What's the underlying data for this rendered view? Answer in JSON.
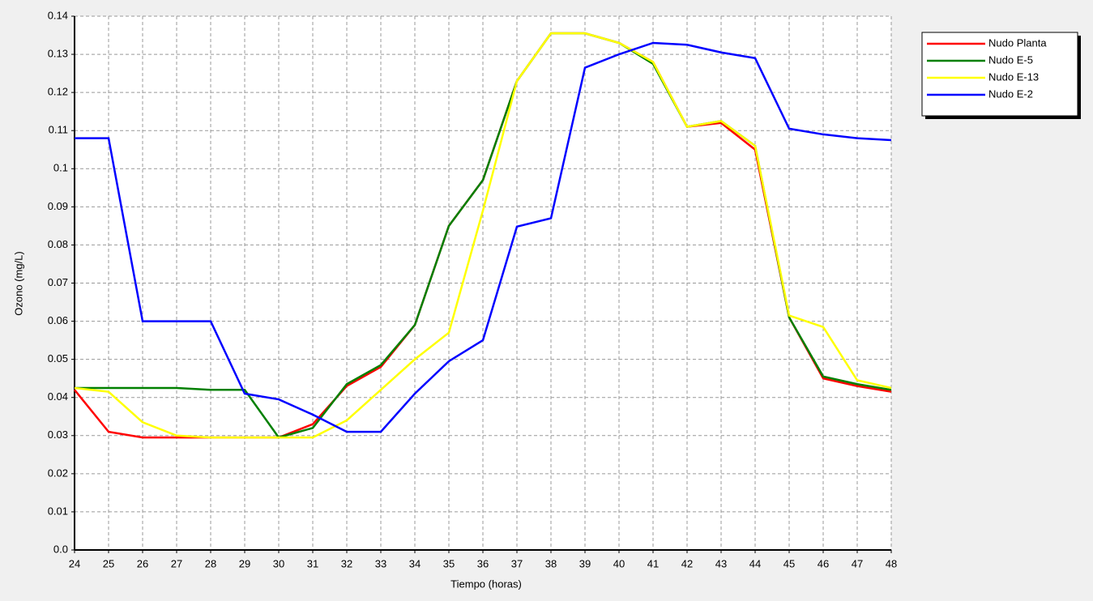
{
  "chart_data": {
    "type": "line",
    "x_label": "Tiempo (horas)",
    "y_label": "Ozono (mg/L)",
    "x": [
      24,
      25,
      26,
      27,
      28,
      29,
      30,
      31,
      32,
      33,
      34,
      35,
      36,
      37,
      38,
      39,
      40,
      41,
      42,
      43,
      44,
      45,
      46,
      47,
      48
    ],
    "xlim": [
      24,
      48
    ],
    "xticks": [
      24,
      25,
      26,
      27,
      28,
      29,
      30,
      31,
      32,
      33,
      34,
      35,
      36,
      37,
      38,
      39,
      40,
      41,
      42,
      43,
      44,
      45,
      46,
      47,
      48
    ],
    "ylim": [
      0,
      0.14
    ],
    "yticks": [
      {
        "value": 0,
        "label": "0.0"
      },
      0.01,
      0.02,
      0.03,
      0.04,
      0.05,
      0.06,
      0.07,
      0.08,
      0.09,
      0.1,
      0.11,
      0.12,
      0.13,
      0.14
    ],
    "grid": true,
    "legend": "upper right",
    "series": [
      {
        "name": "Nudo Planta",
        "color": "#ff0000",
        "values": [
          0.042,
          0.031,
          0.0295,
          0.0295,
          0.0295,
          0.0295,
          0.0295,
          0.033,
          0.043,
          0.048,
          0.059,
          0.085,
          0.097,
          0.123,
          0.1355,
          0.1355,
          0.133,
          0.128,
          0.111,
          0.112,
          0.105,
          0.061,
          0.045,
          0.043,
          0.0415
        ]
      },
      {
        "name": "Nudo E-5",
        "color": "#008000",
        "values": [
          0.0425,
          0.0425,
          0.0425,
          0.0425,
          0.042,
          0.042,
          0.0295,
          0.032,
          0.0435,
          0.0485,
          0.059,
          0.085,
          0.097,
          0.123,
          0.1355,
          0.1355,
          0.133,
          0.1275,
          0.111,
          0.1125,
          0.106,
          0.061,
          0.0455,
          0.0435,
          0.042
        ]
      },
      {
        "name": "Nudo E-13",
        "color": "#ffff00",
        "values": [
          0.0425,
          0.0415,
          0.0335,
          0.03,
          0.0295,
          0.0295,
          0.0295,
          0.0295,
          0.034,
          0.042,
          0.05,
          0.057,
          0.089,
          0.123,
          0.1355,
          0.1355,
          0.133,
          0.128,
          0.111,
          0.1125,
          0.106,
          0.0615,
          0.0585,
          0.0445,
          0.0425
        ]
      },
      {
        "name": "Nudo E-2",
        "color": "#0000ff",
        "values": [
          0.108,
          0.108,
          0.06,
          0.06,
          0.06,
          0.041,
          0.0395,
          0.0355,
          0.031,
          0.031,
          0.041,
          0.0495,
          0.055,
          0.0848,
          0.087,
          0.1265,
          0.13,
          0.133,
          0.1325,
          0.1305,
          0.129,
          0.1105,
          0.109,
          0.108,
          0.1075
        ]
      }
    ]
  }
}
